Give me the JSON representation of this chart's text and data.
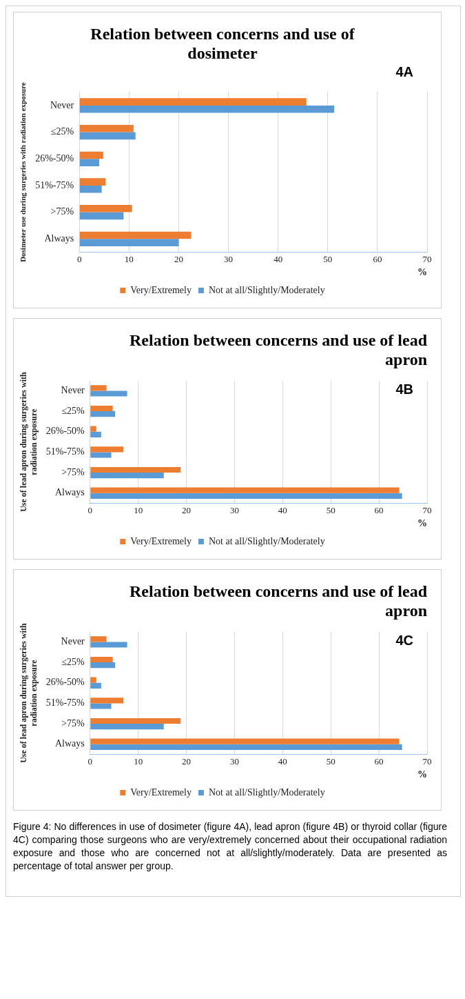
{
  "chart_data": [
    {
      "type": "bar",
      "orientation": "horizontal",
      "title": "Relation between concerns and use of dosimeter",
      "xlabel": "%",
      "ylabel": "Dosimeter use during surgeries with radiation exposure",
      "categories": [
        "Never",
        "≤25%",
        "26%-50%",
        "51%-75%",
        ">75%",
        "Always"
      ],
      "series": [
        {
          "name": "Very/Extremely",
          "color": "#ed7d31",
          "values": [
            45.7,
            10.9,
            4.8,
            5.3,
            10.6,
            22.5
          ]
        },
        {
          "name": "Not at all/Slightly/Moderately",
          "color": "#5b9bd5",
          "values": [
            51.3,
            11.3,
            4.0,
            4.5,
            8.9,
            20.0
          ]
        }
      ],
      "xlim": [
        0,
        70
      ],
      "xticks": [
        0,
        10,
        20,
        30,
        40,
        50,
        60,
        70
      ],
      "grid": "x",
      "legend": "bottom",
      "annotations": [
        "4A"
      ]
    },
    {
      "type": "bar",
      "orientation": "horizontal",
      "title": "Relation between concerns and use of lead apron",
      "xlabel": "%",
      "ylabel": "Use of lead apron during surgeries with radiation exposure",
      "categories": [
        "Never",
        "≤25%",
        "26%-50%",
        "51%-75%",
        ">75%",
        "Always"
      ],
      "series": [
        {
          "name": "Very/Extremely",
          "color": "#ed7d31",
          "values": [
            3.4,
            4.7,
            1.3,
            6.9,
            18.8,
            64.2
          ]
        },
        {
          "name": "Not at all/Slightly/Moderately",
          "color": "#5b9bd5",
          "values": [
            7.7,
            5.2,
            2.3,
            4.4,
            15.3,
            64.8
          ]
        }
      ],
      "xlim": [
        0,
        70
      ],
      "xticks": [
        0,
        10,
        20,
        30,
        40,
        50,
        60,
        70
      ],
      "grid": "x",
      "legend": "bottom",
      "annotations": [
        "4B"
      ]
    },
    {
      "type": "bar",
      "orientation": "horizontal",
      "title": "Relation between concerns and use of lead apron",
      "xlabel": "%",
      "ylabel": "Use of lead apron during surgeries with radiation exposure",
      "categories": [
        "Never",
        "≤25%",
        "26%-50%",
        "51%-75%",
        ">75%",
        "Always"
      ],
      "series": [
        {
          "name": "Very/Extremely",
          "color": "#ed7d31",
          "values": [
            3.4,
            4.7,
            1.3,
            6.9,
            18.8,
            64.2
          ]
        },
        {
          "name": "Not at all/Slightly/Moderately",
          "color": "#5b9bd5",
          "values": [
            7.7,
            5.2,
            2.3,
            4.4,
            15.3,
            64.8
          ]
        }
      ],
      "xlim": [
        0,
        70
      ],
      "xticks": [
        0,
        10,
        20,
        30,
        40,
        50,
        60,
        70
      ],
      "grid": "x",
      "legend": "bottom",
      "annotations": [
        "4C",
        "Figure 4: No differences in use of dosimeter (figure 4A), lead apron (figure 4B) or thyroid collar (figure 4C) comparing those surgeons who are very/extremely concerned about their occupational radiation exposure and those who are concerned not at all/slightly/moderately. Data are presented as percentage of total answer per group."
      ]
    }
  ]
}
